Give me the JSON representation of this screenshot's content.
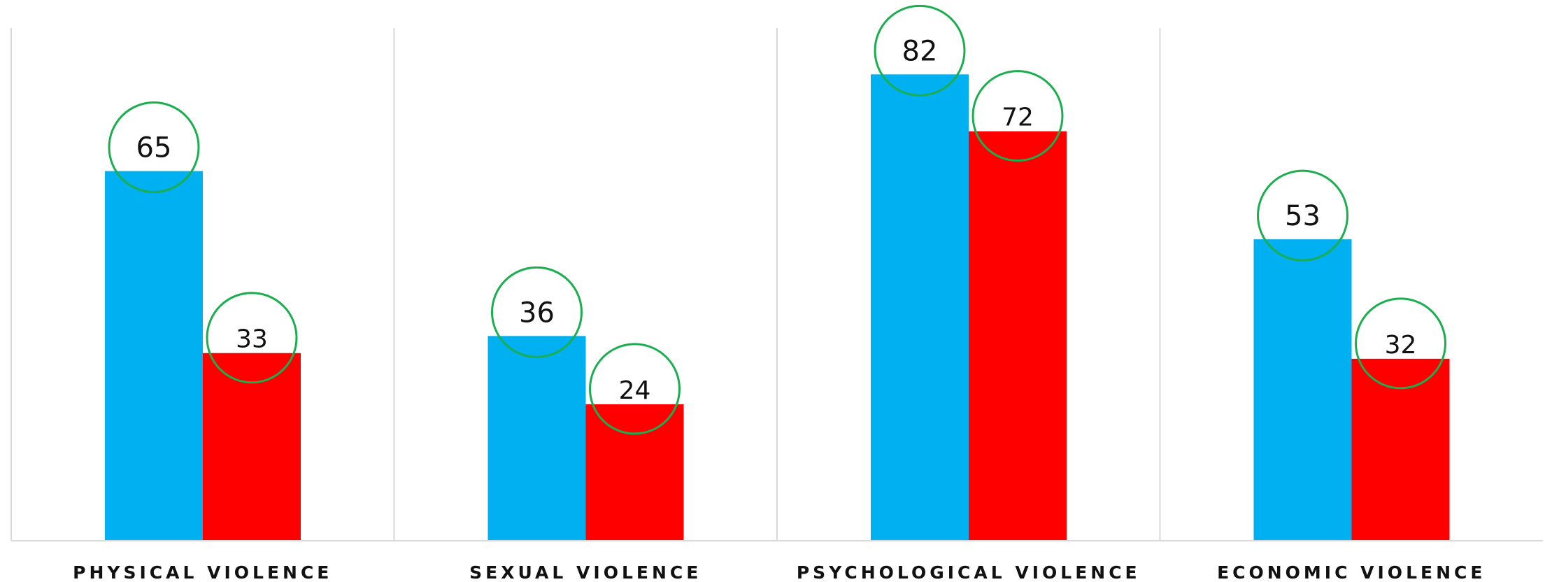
{
  "chart_data": {
    "type": "bar",
    "categories": [
      "PHYSICAL VIOLENCE",
      "SEXUAL VIOLENCE",
      "PSYCHOLOGICAL VIOLENCE",
      "ECONOMIC VIOLENCE"
    ],
    "series": [
      {
        "values": [
          65,
          36,
          82,
          53
        ],
        "color": "#00B0F0"
      },
      {
        "values": [
          33,
          24,
          72,
          32
        ],
        "color": "#FF0000"
      }
    ],
    "ylim": [
      0,
      90
    ],
    "grid": "vertical separators",
    "legend": "none",
    "data_label_marker": "circle",
    "data_label_marker_color": "#1BAE4F"
  }
}
